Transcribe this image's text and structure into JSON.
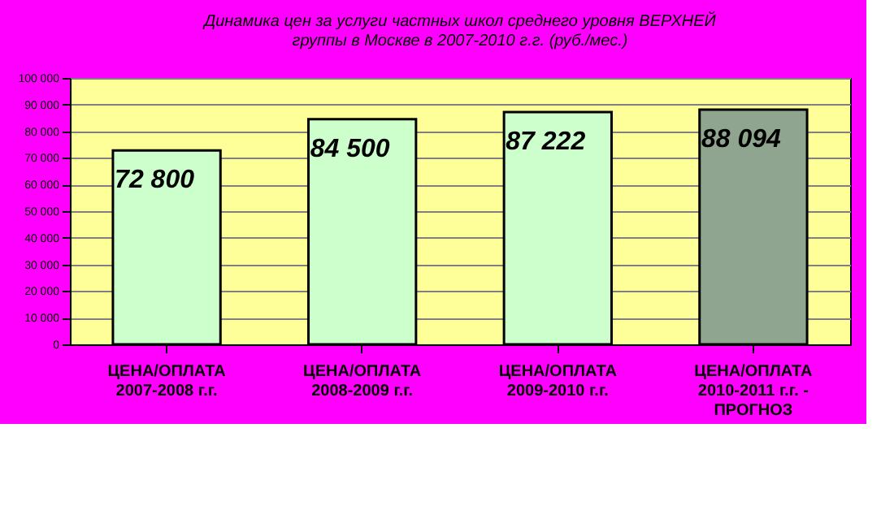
{
  "chart_data": {
    "type": "bar",
    "title": "Динамика цен за услуги частных школ среднего уровня ВЕРХНЕЙ\nгруппы в Москве в 2007-2010 г.г. (руб./мес.)",
    "categories": [
      "ЦЕНА/ОПЛАТА\n2007-2008 г.г.",
      "ЦЕНА/ОПЛАТА\n2008-2009 г.г.",
      "ЦЕНА/ОПЛАТА\n2009-2010 г.г.",
      "ЦЕНА/ОПЛАТА\n2010-2011 г.г. -\nПРОГНОЗ"
    ],
    "values": [
      72800,
      84500,
      87222,
      88094
    ],
    "value_labels": [
      "72 800",
      "84 500",
      "87 222",
      "88 094"
    ],
    "colors": [
      "#ccffcc",
      "#ccffcc",
      "#ccffcc",
      "#8fa58f"
    ],
    "ylim": [
      0,
      100000
    ],
    "yticks": [
      {
        "value": 0,
        "label": "0"
      },
      {
        "value": 10000,
        "label": "10 000"
      },
      {
        "value": 20000,
        "label": "20 000"
      },
      {
        "value": 30000,
        "label": "30 000"
      },
      {
        "value": 40000,
        "label": "40 000"
      },
      {
        "value": 50000,
        "label": "50 000"
      },
      {
        "value": 60000,
        "label": "60 000"
      },
      {
        "value": 70000,
        "label": "70 000"
      },
      {
        "value": 80000,
        "label": "80 000"
      },
      {
        "value": 90000,
        "label": "90 000"
      },
      {
        "value": 100000,
        "label": "100 000"
      }
    ],
    "grid": "y"
  }
}
